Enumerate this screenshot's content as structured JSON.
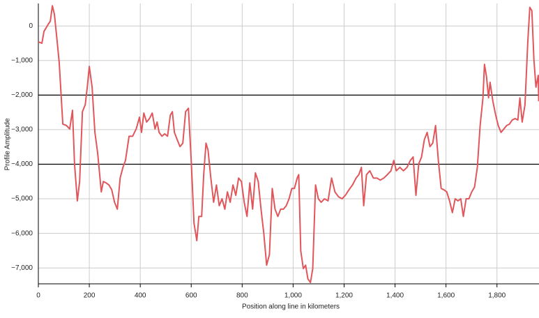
{
  "chart_data": {
    "type": "line",
    "xlabel": "Position along line in kilometers",
    "ylabel": "Profile Amplitude",
    "x": [
      0,
      14,
      22,
      30,
      38,
      47,
      55,
      63,
      74,
      82,
      96,
      110,
      123,
      134,
      142,
      153,
      162,
      173,
      184,
      192,
      200,
      211,
      222,
      233,
      247,
      255,
      266,
      277,
      288,
      299,
      310,
      321,
      332,
      342,
      356,
      370,
      384,
      397,
      405,
      414,
      425,
      436,
      447,
      458,
      466,
      474,
      485,
      496,
      507,
      518,
      526,
      534,
      545,
      556,
      567,
      578,
      589,
      600,
      611,
      622,
      630,
      641,
      649,
      658,
      666,
      677,
      688,
      699,
      710,
      721,
      732,
      742,
      753,
      764,
      775,
      786,
      797,
      808,
      819,
      830,
      841,
      852,
      863,
      874,
      885,
      896,
      907,
      918,
      929,
      940,
      951,
      962,
      973,
      984,
      995,
      1005,
      1016,
      1022,
      1030,
      1040,
      1049,
      1058,
      1068,
      1077,
      1088,
      1099,
      1110,
      1123,
      1137,
      1151,
      1164,
      1178,
      1192,
      1205,
      1219,
      1233,
      1247,
      1258,
      1268,
      1277,
      1288,
      1301,
      1315,
      1329,
      1342,
      1356,
      1370,
      1384,
      1395,
      1405,
      1419,
      1433,
      1447,
      1460,
      1471,
      1482,
      1493,
      1504,
      1515,
      1526,
      1537,
      1548,
      1559,
      1570,
      1581,
      1592,
      1603,
      1614,
      1625,
      1636,
      1647,
      1658,
      1668,
      1679,
      1690,
      1701,
      1712,
      1723,
      1734,
      1745,
      1751,
      1759,
      1767,
      1773,
      1784,
      1795,
      1805,
      1816,
      1827,
      1838,
      1849,
      1860,
      1871,
      1882,
      1890,
      1899,
      1910,
      1921,
      1929,
      1937,
      1945,
      1953,
      1962,
      1964
    ],
    "series": [
      {
        "name": "Profile",
        "color": "#e0565b",
        "values": [
          -460,
          -500,
          -160,
          -60,
          40,
          140,
          585,
          340,
          -460,
          -1070,
          -2840,
          -2880,
          -2980,
          -2440,
          -3990,
          -5060,
          -4500,
          -2480,
          -2280,
          -1770,
          -1170,
          -1770,
          -3080,
          -3690,
          -4800,
          -4500,
          -4540,
          -4600,
          -4740,
          -5100,
          -5300,
          -4400,
          -4090,
          -3890,
          -3190,
          -3190,
          -2980,
          -2640,
          -3080,
          -2520,
          -2780,
          -2680,
          -2520,
          -2980,
          -2780,
          -3080,
          -3190,
          -3120,
          -3190,
          -2580,
          -2480,
          -3080,
          -3290,
          -3490,
          -3390,
          -2480,
          -2380,
          -3890,
          -5710,
          -6210,
          -5510,
          -5510,
          -4300,
          -3390,
          -3590,
          -4400,
          -5100,
          -4600,
          -5200,
          -5000,
          -5300,
          -4800,
          -5100,
          -4600,
          -4900,
          -4400,
          -4500,
          -5100,
          -5510,
          -4540,
          -5300,
          -4250,
          -4500,
          -5300,
          -6010,
          -6920,
          -6610,
          -4700,
          -5300,
          -5510,
          -5300,
          -5300,
          -5200,
          -5000,
          -4700,
          -4700,
          -4400,
          -4300,
          -6510,
          -7020,
          -6920,
          -7320,
          -7420,
          -7020,
          -4600,
          -5000,
          -5100,
          -5000,
          -5060,
          -4400,
          -4800,
          -4940,
          -5000,
          -4900,
          -4740,
          -4600,
          -4400,
          -4300,
          -4090,
          -5200,
          -4300,
          -4190,
          -4400,
          -4400,
          -4460,
          -4400,
          -4300,
          -4190,
          -3890,
          -4190,
          -4090,
          -4190,
          -4090,
          -3890,
          -3790,
          -4900,
          -3990,
          -3790,
          -3290,
          -3080,
          -3490,
          -3390,
          -2880,
          -3890,
          -4700,
          -4740,
          -4800,
          -5060,
          -5400,
          -5000,
          -5060,
          -5000,
          -5510,
          -5000,
          -5000,
          -4800,
          -4660,
          -4090,
          -2880,
          -2080,
          -1110,
          -1470,
          -2080,
          -1630,
          -2180,
          -2580,
          -2880,
          -3080,
          -2980,
          -2880,
          -2840,
          -2720,
          -2680,
          -2720,
          -2080,
          -2780,
          -2280,
          -460,
          540,
          440,
          -970,
          -1770,
          -1430,
          -2180
        ]
      }
    ],
    "xlim": [
      0,
      1965
    ],
    "xticks": [
      0,
      200,
      400,
      600,
      800,
      {
        "value": 1000,
        "label": "1,000"
      },
      {
        "value": 1200,
        "label": "1,200"
      },
      {
        "value": 1400,
        "label": "1,400"
      },
      {
        "value": 1600,
        "label": "1,600"
      },
      {
        "value": 1800,
        "label": "1,800"
      }
    ],
    "ylim": [
      -7460,
      650
    ],
    "yticks": [
      0,
      {
        "value": -1000,
        "label": "−1,000"
      },
      {
        "value": -2000,
        "label": "−2,000"
      },
      {
        "value": -3000,
        "label": "−3,000"
      },
      {
        "value": -4000,
        "label": "−4,000"
      },
      {
        "value": -5000,
        "label": "−5,000"
      },
      {
        "value": -6000,
        "label": "−6,000"
      },
      {
        "value": -7000,
        "label": "−7,000"
      }
    ],
    "reference_lines": [
      -2000,
      -4000
    ],
    "grid": true
  }
}
